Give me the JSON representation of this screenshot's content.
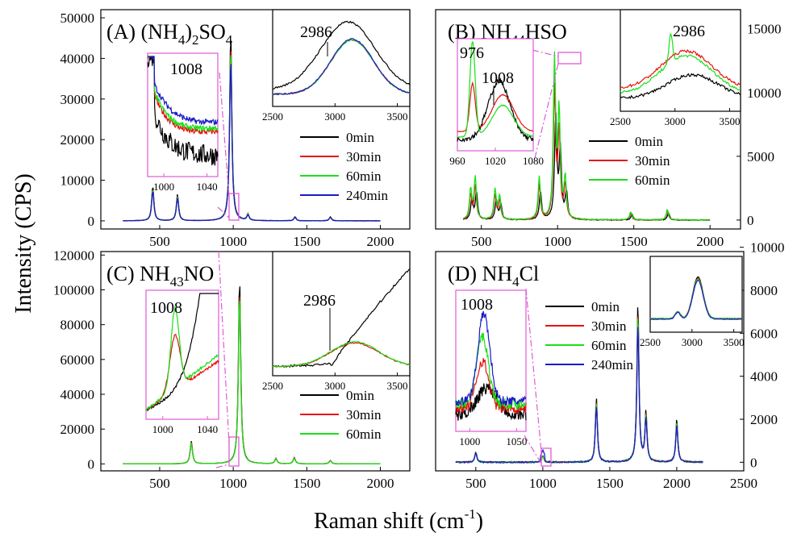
{
  "figure": {
    "ylabel": "Intensity (CPS)",
    "xlabel_main": "Raman shift (cm",
    "xlabel_sup": "-1",
    "xlabel_close": ")"
  },
  "colors": {
    "0min": "#000000",
    "30min": "#e8120f",
    "60min": "#18e018",
    "240min": "#1a1ac8",
    "zoom": "#e05bd6"
  },
  "chart_data": [
    {
      "id": "A",
      "type": "line",
      "title": "(A) (NH4)2SO4",
      "title_parts": {
        "pre": "(A) (NH",
        "s1": "4",
        "mid": ")",
        "s2": "2",
        "post": "SO",
        "s3": "4"
      },
      "xlim": [
        100,
        2200
      ],
      "ylim": [
        -2000,
        52000
      ],
      "xticks": [
        500,
        1000,
        1500,
        2000
      ],
      "yticks": [
        0,
        10000,
        20000,
        30000,
        40000,
        50000
      ],
      "legend": [
        "0min",
        "30min",
        "60min",
        "240min"
      ],
      "peaks": [
        [
          453,
          8500
        ],
        [
          621,
          6500
        ],
        [
          983,
          46500
        ],
        [
          1100,
          1500
        ],
        [
          1420,
          1000
        ],
        [
          1660,
          1000
        ]
      ],
      "inset_left": {
        "xlim": [
          985,
          1050
        ],
        "ylim": [
          0,
          1
        ],
        "xticks": [
          1000,
          1040
        ],
        "annotation": "1008"
      },
      "inset_right": {
        "xlim": [
          2500,
          3600
        ],
        "ylim": [
          0,
          1
        ],
        "xticks": [
          2500,
          3000,
          3500
        ],
        "annotation": "2986"
      }
    },
    {
      "id": "B",
      "type": "line",
      "title": "(B) NH4HSO4",
      "title_parts": {
        "pre": "(B) NH",
        "s1": "4",
        "post": "HSO",
        "s2": "4"
      },
      "xlim": [
        200,
        2200
      ],
      "ylim": [
        -700,
        16500
      ],
      "xticks": [
        500,
        1000,
        1500,
        2000
      ],
      "yticks": [
        0,
        5000,
        10000,
        15000
      ],
      "legend": [
        "0min",
        "30min",
        "60min"
      ],
      "peaks": [
        [
          430,
          2600
        ],
        [
          460,
          3600
        ],
        [
          590,
          2600
        ],
        [
          620,
          2000
        ],
        [
          880,
          3600
        ],
        [
          980,
          13500
        ],
        [
          1010,
          9000
        ],
        [
          1050,
          3500
        ],
        [
          1480,
          700
        ],
        [
          1720,
          900
        ]
      ],
      "inset_left": {
        "xlim": [
          960,
          1080
        ],
        "ylim": [
          0,
          1
        ],
        "xticks": [
          960,
          1020,
          1080
        ],
        "annotation_a": "976",
        "annotation_b": "1008"
      },
      "inset_right": {
        "xlim": [
          2500,
          3600
        ],
        "ylim": [
          0,
          1
        ],
        "xticks": [
          2500,
          3000,
          3500
        ],
        "annotation": "2986"
      }
    },
    {
      "id": "C",
      "type": "line",
      "title": "(C) NH4NO3",
      "title_parts": {
        "pre": "(C) NH",
        "s1": "4",
        "post": "NO",
        "s2": "3"
      },
      "xlim": [
        100,
        2200
      ],
      "ylim": [
        -4000,
        122000
      ],
      "xticks": [
        500,
        1000,
        1500,
        2000
      ],
      "yticks": [
        0,
        20000,
        40000,
        60000,
        80000,
        100000,
        120000
      ],
      "legend": [
        "0min",
        "30min",
        "60min"
      ],
      "peaks": [
        [
          715,
          13000
        ],
        [
          1043,
          107000
        ],
        [
          1290,
          3000
        ],
        [
          1415,
          3500
        ],
        [
          1660,
          2000
        ]
      ],
      "inset_left": {
        "xlim": [
          985,
          1050
        ],
        "ylim": [
          0,
          1
        ],
        "xticks": [
          1000,
          1040
        ],
        "annotation": "1008"
      },
      "inset_right": {
        "xlim": [
          2500,
          3600
        ],
        "ylim": [
          0,
          1
        ],
        "xticks": [
          2500,
          3000,
          3500
        ],
        "annotation": "2986"
      }
    },
    {
      "id": "D",
      "type": "line",
      "title": "(D) NH4Cl",
      "title_parts": {
        "pre": "(D) NH",
        "s1": "4",
        "post": "Cl"
      },
      "xlim": [
        200,
        2500
      ],
      "ylim": [
        -400,
        9800
      ],
      "xticks": [
        500,
        1000,
        1500,
        2000,
        2500
      ],
      "yticks": [
        0,
        2000,
        4000,
        6000,
        8000,
        10000
      ],
      "legend": [
        "0min",
        "30min",
        "60min",
        "240min"
      ],
      "peaks": [
        [
          500,
          500
        ],
        [
          1000,
          300
        ],
        [
          1400,
          3000
        ],
        [
          1710,
          7500
        ],
        [
          1770,
          2300
        ],
        [
          2000,
          2000
        ]
      ],
      "inset_left": {
        "xlim": [
          985,
          1060
        ],
        "ylim": [
          0,
          1
        ],
        "xticks": [
          1000,
          1050
        ],
        "annotation": "1008"
      },
      "inset_right": {
        "xlim": [
          2500,
          3600
        ],
        "ylim": [
          0,
          1
        ],
        "xticks": [
          2500,
          3000,
          3500
        ]
      }
    }
  ]
}
